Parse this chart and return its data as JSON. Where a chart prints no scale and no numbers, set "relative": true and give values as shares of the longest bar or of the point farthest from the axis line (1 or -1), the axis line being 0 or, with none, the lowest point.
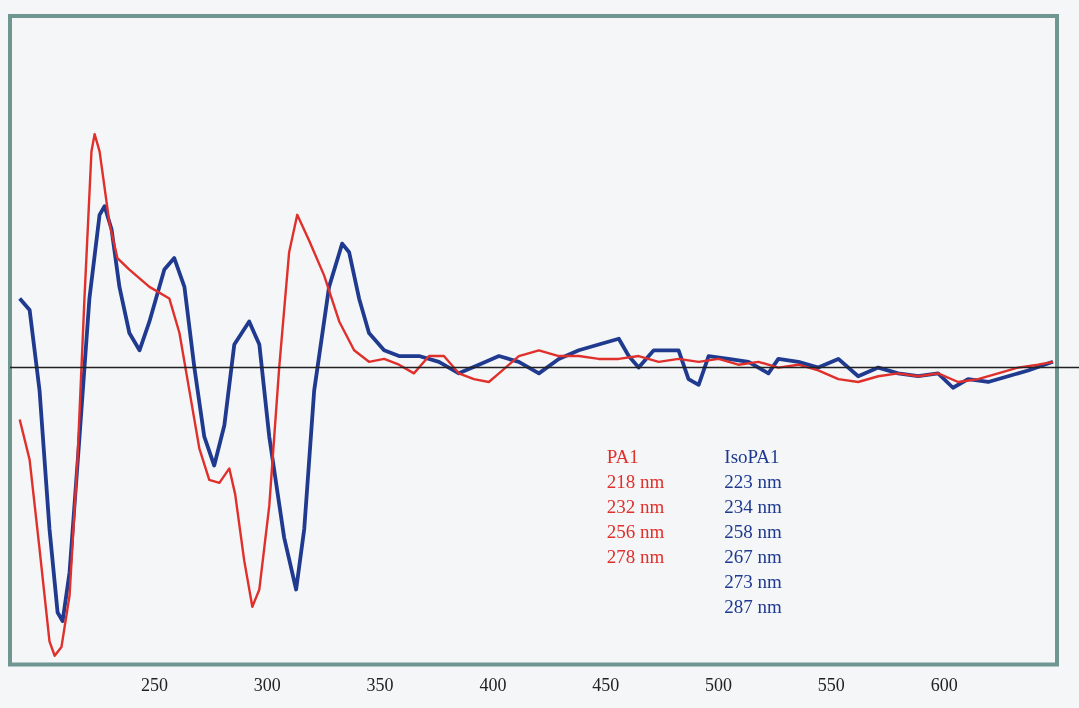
{
  "chart_data": {
    "type": "line",
    "relative": true,
    "xlim": [
      186,
      650
    ],
    "xticks": [
      250,
      300,
      350,
      400,
      450,
      500,
      550,
      600
    ],
    "legend": "bottom right",
    "marker": "none",
    "line_style": "solid",
    "grid": false,
    "series": [
      {
        "name": "PA1\n218 nm\n232 nm\n256 nm\n278 nm",
        "color": "#e0302c",
        "x": [
          190.3,
          194.7,
          199.1,
          203.5,
          205.8,
          208.8,
          212.4,
          215.9,
          219.0,
          222.1,
          223.5,
          225.7,
          230.1,
          233.6,
          238.9,
          247.8,
          256.6,
          261.1,
          265.5,
          269.9,
          274.3,
          278.8,
          283.2,
          285.8,
          289.8,
          293.4,
          296.5,
          300.9,
          305.3,
          309.7,
          313.3,
          318.6,
          325.2,
          331.9,
          338.5,
          345.1,
          351.8,
          358.4,
          365.0,
          371.7,
          378.3,
          384.9,
          391.6,
          398.2,
          402.7,
          411.5,
          420.4,
          429.2,
          438.1,
          446.9,
          455.8,
          464.6,
          473.5,
          482.3,
          491.2,
          500.0,
          508.8,
          517.7,
          526.5,
          535.4,
          544.2,
          553.1,
          561.9,
          570.8,
          579.6,
          588.5,
          597.3,
          606.2,
          615.0,
          623.9,
          632.7,
          641.6,
          648.2
        ],
        "values": [
          -0.18,
          -0.32,
          -0.63,
          -0.95,
          -1.0,
          -0.97,
          -0.79,
          -0.32,
          0.24,
          0.75,
          0.81,
          0.75,
          0.5,
          0.38,
          0.34,
          0.28,
          0.24,
          0.12,
          -0.08,
          -0.28,
          -0.39,
          -0.4,
          -0.35,
          -0.44,
          -0.67,
          -0.83,
          -0.77,
          -0.48,
          0.0,
          0.4,
          0.53,
          0.44,
          0.32,
          0.16,
          0.06,
          0.02,
          0.03,
          0.01,
          -0.02,
          0.04,
          0.04,
          -0.02,
          -0.04,
          -0.05,
          -0.02,
          0.04,
          0.06,
          0.04,
          0.04,
          0.03,
          0.03,
          0.04,
          0.02,
          0.03,
          0.02,
          0.03,
          0.01,
          0.02,
          0.0,
          0.01,
          -0.01,
          -0.04,
          -0.05,
          -0.03,
          -0.02,
          -0.03,
          -0.02,
          -0.05,
          -0.04,
          -0.02,
          0.0,
          0.01,
          0.02
        ]
      },
      {
        "name": "IsoPA1\n223 nm\n234 nm\n258 nm\n267 nm\n273 nm\n287 nm",
        "color": "#1f3a8f",
        "x": [
          190.3,
          194.7,
          199.1,
          203.5,
          207.1,
          209.3,
          212.4,
          216.8,
          221.2,
          225.7,
          227.9,
          231.0,
          234.5,
          238.9,
          243.4,
          247.8,
          254.4,
          258.8,
          263.3,
          267.7,
          272.1,
          276.5,
          281.0,
          285.4,
          292.0,
          296.5,
          300.9,
          307.5,
          312.8,
          316.4,
          320.8,
          327.4,
          333.2,
          336.3,
          340.7,
          345.1,
          351.8,
          358.4,
          367.3,
          376.1,
          384.9,
          393.8,
          402.7,
          411.5,
          420.4,
          429.2,
          438.1,
          446.9,
          455.8,
          460.2,
          464.6,
          471.3,
          482.3,
          486.7,
          491.2,
          495.6,
          504.4,
          513.3,
          522.1,
          526.5,
          535.4,
          544.2,
          553.1,
          561.9,
          570.8,
          579.6,
          588.5,
          597.3,
          603.9,
          610.6,
          619.5,
          628.3,
          637.2,
          648.2
        ],
        "values": [
          0.24,
          0.2,
          -0.08,
          -0.56,
          -0.85,
          -0.88,
          -0.71,
          -0.24,
          0.24,
          0.53,
          0.56,
          0.48,
          0.28,
          0.12,
          0.06,
          0.16,
          0.34,
          0.38,
          0.28,
          0.0,
          -0.24,
          -0.34,
          -0.2,
          0.08,
          0.16,
          0.08,
          -0.24,
          -0.59,
          -0.77,
          -0.56,
          -0.08,
          0.28,
          0.43,
          0.4,
          0.24,
          0.12,
          0.06,
          0.04,
          0.04,
          0.02,
          -0.02,
          0.01,
          0.04,
          0.02,
          -0.02,
          0.03,
          0.06,
          0.08,
          0.1,
          0.04,
          0.0,
          0.06,
          0.06,
          -0.04,
          -0.06,
          0.04,
          0.03,
          0.02,
          -0.02,
          0.03,
          0.02,
          0.0,
          0.03,
          -0.03,
          0.0,
          -0.02,
          -0.03,
          -0.02,
          -0.07,
          -0.04,
          -0.05,
          -0.03,
          -0.01,
          0.02
        ]
      }
    ]
  }
}
